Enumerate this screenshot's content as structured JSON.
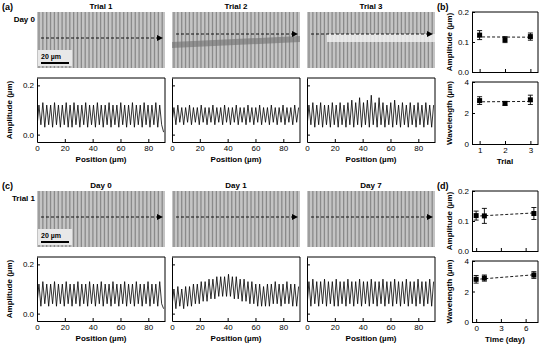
{
  "panels": [
    {
      "label": "(a)",
      "row_label": "Day 0",
      "image_titles": [
        "Trial 1",
        "Trial 2",
        "Trial 3"
      ],
      "scale_bar": "20 µm"
    },
    {
      "label": "(b)"
    },
    {
      "label": "(c)",
      "row_label": "Trial 1",
      "image_titles": [
        "Day 0",
        "Day 1",
        "Day 7"
      ],
      "scale_bar": "20 µm"
    },
    {
      "label": "(d)"
    }
  ],
  "chart_data": [
    {
      "type": "line",
      "color": "#000000",
      "xlim": [
        0,
        92
      ],
      "ylim": [
        -0.03,
        0.23
      ],
      "xticks": [
        0,
        20,
        40,
        60,
        80
      ],
      "yticks": [
        {
          "value": 0,
          "label": "0.0"
        },
        0.2
      ],
      "x_label": "Position (µm)",
      "y_label": "Amplitude (µm)",
      "x": [
        0,
        1.4,
        2.8,
        4.2,
        5.6,
        7,
        8.4,
        9.8,
        11.2,
        12.6,
        14,
        15.4,
        16.8,
        18.2,
        19.6,
        21,
        22.4,
        23.8,
        25.2,
        26.6,
        28,
        29.4,
        30.8,
        32.2,
        33.6,
        35,
        36.4,
        37.8,
        39.2,
        40.6,
        42,
        43.4,
        44.8,
        46.2,
        47.6,
        49,
        50.4,
        51.8,
        53.2,
        54.6,
        56,
        57.4,
        58.8,
        60.2,
        61.6,
        63,
        64.4,
        65.8,
        67.2,
        68.6,
        70,
        71.4,
        72.8,
        74.2,
        75.6,
        77,
        78.4,
        79.8,
        81.2,
        82.6,
        84,
        85.4,
        86.8,
        88.2,
        89.6,
        91
      ],
      "values": [
        0.03,
        0.12,
        0.04,
        0.13,
        0.03,
        0.12,
        0.04,
        0.12,
        0.03,
        0.13,
        0.04,
        0.12,
        0.03,
        0.12,
        0.04,
        0.13,
        0.03,
        0.12,
        0.03,
        0.13,
        0.04,
        0.12,
        0.03,
        0.12,
        0.04,
        0.13,
        0.03,
        0.12,
        0.04,
        0.12,
        0.03,
        0.13,
        0.04,
        0.12,
        0.03,
        0.12,
        0.04,
        0.13,
        0.03,
        0.12,
        0.04,
        0.12,
        0.03,
        0.13,
        0.04,
        0.12,
        0.03,
        0.12,
        0.04,
        0.13,
        0.03,
        0.12,
        0.04,
        0.12,
        0.03,
        0.13,
        0.04,
        0.12,
        0.03,
        0.12,
        0.04,
        0.13,
        0.03,
        0.12,
        0.04,
        0.01
      ]
    },
    {
      "type": "line",
      "color": "#000000",
      "xlim": [
        0,
        92
      ],
      "ylim": [
        -0.03,
        0.23
      ],
      "xticks": [
        0,
        20,
        40,
        60,
        80
      ],
      "yticks": [
        {
          "value": 0,
          "label": "0.0"
        },
        0.2
      ],
      "x_label": "Position (µm)",
      "tick_labels": "x",
      "x": [
        0,
        1.4,
        2.8,
        4.2,
        5.6,
        7,
        8.4,
        9.8,
        11.2,
        12.6,
        14,
        15.4,
        16.8,
        18.2,
        19.6,
        21,
        22.4,
        23.8,
        25.2,
        26.6,
        28,
        29.4,
        30.8,
        32.2,
        33.6,
        35,
        36.4,
        37.8,
        39.2,
        40.6,
        42,
        43.4,
        44.8,
        46.2,
        47.6,
        49,
        50.4,
        51.8,
        53.2,
        54.6,
        56,
        57.4,
        58.8,
        60.2,
        61.6,
        63,
        64.4,
        65.8,
        67.2,
        68.6,
        70,
        71.4,
        72.8,
        74.2,
        75.6,
        77,
        78.4,
        79.8,
        81.2,
        82.6,
        84,
        85.4,
        86.8,
        88.2,
        89.6,
        91
      ],
      "values": [
        0.05,
        0.11,
        0.04,
        0.12,
        0.05,
        0.11,
        0.04,
        0.11,
        0.05,
        0.12,
        0.04,
        0.11,
        0.05,
        0.11,
        0.04,
        0.12,
        0.05,
        0.11,
        0.04,
        0.11,
        0.05,
        0.12,
        0.04,
        0.11,
        0.05,
        0.11,
        0.04,
        0.12,
        0.05,
        0.11,
        0.04,
        0.11,
        0.05,
        0.12,
        0.04,
        0.11,
        0.05,
        0.11,
        0.04,
        0.12,
        0.05,
        0.11,
        0.04,
        0.11,
        0.05,
        0.12,
        0.04,
        0.11,
        0.05,
        0.11,
        0.04,
        0.12,
        0.05,
        0.11,
        0.04,
        0.11,
        0.05,
        0.12,
        0.04,
        0.11,
        0.05,
        0.11,
        0.04,
        0.12,
        0.05,
        0.11
      ]
    },
    {
      "type": "line",
      "color": "#000000",
      "xlim": [
        0,
        92
      ],
      "ylim": [
        -0.03,
        0.23
      ],
      "xticks": [
        0,
        20,
        40,
        60,
        80
      ],
      "yticks": [
        {
          "value": 0,
          "label": "0.0"
        },
        0.2
      ],
      "x_label": "Position (µm)",
      "tick_labels": "x",
      "x": [
        0,
        1.4,
        2.8,
        4.2,
        5.6,
        7,
        8.4,
        9.8,
        11.2,
        12.6,
        14,
        15.4,
        16.8,
        18.2,
        19.6,
        21,
        22.4,
        23.8,
        25.2,
        26.6,
        28,
        29.4,
        30.8,
        32.2,
        33.6,
        35,
        36.4,
        37.8,
        39.2,
        40.6,
        42,
        43.4,
        44.8,
        46.2,
        47.6,
        49,
        50.4,
        51.8,
        53.2,
        54.6,
        56,
        57.4,
        58.8,
        60.2,
        61.6,
        63,
        64.4,
        65.8,
        67.2,
        68.6,
        70,
        71.4,
        72.8,
        74.2,
        75.6,
        77,
        78.4,
        79.8,
        81.2,
        82.6,
        84,
        85.4,
        86.8,
        88.2,
        89.6,
        91
      ],
      "values": [
        0.03,
        0.12,
        0.04,
        0.13,
        0.03,
        0.12,
        0.04,
        0.13,
        0.03,
        0.12,
        0.04,
        0.12,
        0.03,
        0.13,
        0.04,
        0.12,
        0.03,
        0.13,
        0.04,
        0.12,
        0.03,
        0.13,
        0.04,
        0.14,
        0.03,
        0.13,
        0.04,
        0.15,
        0.03,
        0.13,
        0.04,
        0.14,
        0.03,
        0.16,
        0.04,
        0.13,
        0.03,
        0.15,
        0.04,
        0.13,
        0.03,
        0.12,
        0.04,
        0.13,
        0.03,
        0.14,
        0.04,
        0.12,
        0.03,
        0.13,
        0.04,
        0.12,
        0.03,
        0.13,
        0.04,
        0.12,
        0.03,
        0.13,
        0.04,
        0.12,
        0.03,
        0.13,
        0.04,
        0.12,
        0.03,
        0.12
      ]
    },
    {
      "type": "line",
      "color": "#000000",
      "xlim": [
        0,
        92
      ],
      "ylim": [
        -0.03,
        0.23
      ],
      "xticks": [
        0,
        20,
        40,
        60,
        80
      ],
      "yticks": [
        {
          "value": 0,
          "label": "0.0"
        },
        0.2
      ],
      "x_label": "Position (µm)",
      "y_label": "Amplitude (µm)",
      "x": [
        0,
        1.4,
        2.8,
        4.2,
        5.6,
        7,
        8.4,
        9.8,
        11.2,
        12.6,
        14,
        15.4,
        16.8,
        18.2,
        19.6,
        21,
        22.4,
        23.8,
        25.2,
        26.6,
        28,
        29.4,
        30.8,
        32.2,
        33.6,
        35,
        36.4,
        37.8,
        39.2,
        40.6,
        42,
        43.4,
        44.8,
        46.2,
        47.6,
        49,
        50.4,
        51.8,
        53.2,
        54.6,
        56,
        57.4,
        58.8,
        60.2,
        61.6,
        63,
        64.4,
        65.8,
        67.2,
        68.6,
        70,
        71.4,
        72.8,
        74.2,
        75.6,
        77,
        78.4,
        79.8,
        81.2,
        82.6,
        84,
        85.4,
        86.8,
        88.2,
        89.6,
        91
      ],
      "values": [
        0.04,
        0.12,
        0.03,
        0.13,
        0.04,
        0.12,
        0.03,
        0.12,
        0.04,
        0.13,
        0.03,
        0.12,
        0.04,
        0.12,
        0.03,
        0.13,
        0.04,
        0.12,
        0.03,
        0.12,
        0.04,
        0.13,
        0.03,
        0.12,
        0.04,
        0.12,
        0.03,
        0.13,
        0.04,
        0.12,
        0.03,
        0.12,
        0.04,
        0.13,
        0.03,
        0.12,
        0.04,
        0.12,
        0.03,
        0.13,
        0.04,
        0.12,
        0.03,
        0.12,
        0.04,
        0.13,
        0.03,
        0.12,
        0.04,
        0.12,
        0.03,
        0.13,
        0.04,
        0.12,
        0.03,
        0.12,
        0.04,
        0.13,
        0.03,
        0.12,
        0.04,
        0.12,
        0.03,
        0.13,
        0.04,
        0.02
      ]
    },
    {
      "type": "line",
      "color": "#000000",
      "xlim": [
        0,
        92
      ],
      "ylim": [
        -0.03,
        0.23
      ],
      "xticks": [
        0,
        20,
        40,
        60,
        80
      ],
      "yticks": [
        {
          "value": 0,
          "label": "0.0"
        },
        0.2
      ],
      "x_label": "Position (µm)",
      "tick_labels": "x",
      "x": [
        0,
        1.4,
        2.8,
        4.2,
        5.6,
        7,
        8.4,
        9.8,
        11.2,
        12.6,
        14,
        15.4,
        16.8,
        18.2,
        19.6,
        21,
        22.4,
        23.8,
        25.2,
        26.6,
        28,
        29.4,
        30.8,
        32.2,
        33.6,
        35,
        36.4,
        37.8,
        39.2,
        40.6,
        42,
        43.4,
        44.8,
        46.2,
        47.6,
        49,
        50.4,
        51.8,
        53.2,
        54.6,
        56,
        57.4,
        58.8,
        60.2,
        61.6,
        63,
        64.4,
        65.8,
        67.2,
        68.6,
        70,
        71.4,
        72.8,
        74.2,
        75.6,
        77,
        78.4,
        79.8,
        81.2,
        82.6,
        84,
        85.4,
        86.8,
        88.2,
        89.6,
        91
      ],
      "values": [
        0.03,
        0.1,
        0.02,
        0.11,
        0.03,
        0.1,
        0.02,
        0.11,
        0.03,
        0.11,
        0.03,
        0.12,
        0.04,
        0.12,
        0.04,
        0.13,
        0.05,
        0.13,
        0.05,
        0.14,
        0.06,
        0.14,
        0.06,
        0.15,
        0.07,
        0.15,
        0.07,
        0.15,
        0.07,
        0.16,
        0.07,
        0.15,
        0.06,
        0.15,
        0.06,
        0.14,
        0.05,
        0.14,
        0.05,
        0.13,
        0.04,
        0.13,
        0.04,
        0.12,
        0.03,
        0.12,
        0.03,
        0.11,
        0.03,
        0.12,
        0.03,
        0.12,
        0.04,
        0.13,
        0.04,
        0.12,
        0.03,
        0.12,
        0.04,
        0.13,
        0.04,
        0.12,
        0.03,
        0.12,
        0.03,
        0.11
      ]
    },
    {
      "type": "line",
      "color": "#000000",
      "xlim": [
        0,
        92
      ],
      "ylim": [
        -0.03,
        0.23
      ],
      "xticks": [
        0,
        20,
        40,
        60,
        80
      ],
      "yticks": [
        {
          "value": 0,
          "label": "0.0"
        },
        0.2
      ],
      "x_label": "Position (µm)",
      "tick_labels": "x",
      "x": [
        0,
        1.4,
        2.8,
        4.2,
        5.6,
        7,
        8.4,
        9.8,
        11.2,
        12.6,
        14,
        15.4,
        16.8,
        18.2,
        19.6,
        21,
        22.4,
        23.8,
        25.2,
        26.6,
        28,
        29.4,
        30.8,
        32.2,
        33.6,
        35,
        36.4,
        37.8,
        39.2,
        40.6,
        42,
        43.4,
        44.8,
        46.2,
        47.6,
        49,
        50.4,
        51.8,
        53.2,
        54.6,
        56,
        57.4,
        58.8,
        60.2,
        61.6,
        63,
        64.4,
        65.8,
        67.2,
        68.6,
        70,
        71.4,
        72.8,
        74.2,
        75.6,
        77,
        78.4,
        79.8,
        81.2,
        82.6,
        84,
        85.4,
        86.8,
        88.2,
        89.6,
        91
      ],
      "values": [
        0.03,
        0.13,
        0.03,
        0.14,
        0.04,
        0.13,
        0.03,
        0.13,
        0.04,
        0.14,
        0.03,
        0.13,
        0.04,
        0.13,
        0.03,
        0.14,
        0.03,
        0.13,
        0.04,
        0.13,
        0.03,
        0.14,
        0.04,
        0.13,
        0.03,
        0.13,
        0.04,
        0.14,
        0.03,
        0.13,
        0.04,
        0.13,
        0.03,
        0.14,
        0.04,
        0.13,
        0.03,
        0.13,
        0.04,
        0.14,
        0.03,
        0.13,
        0.04,
        0.13,
        0.03,
        0.14,
        0.04,
        0.13,
        0.03,
        0.13,
        0.04,
        0.14,
        0.03,
        0.13,
        0.04,
        0.13,
        0.03,
        0.14,
        0.04,
        0.13,
        0.03,
        0.13,
        0.04,
        0.14,
        0.03,
        0.13
      ]
    },
    {
      "type": "scatter",
      "color": "#000000",
      "marker": "square",
      "x": [
        1,
        2,
        3
      ],
      "values": [
        0.123,
        0.108,
        0.118
      ],
      "errors": [
        0.015,
        0.01,
        0.012
      ],
      "fit": {
        "x": [
          0.9,
          3.1
        ],
        "values": [
          0.117,
          0.116
        ],
        "line_style": "dashed"
      },
      "xlim": [
        0.7,
        3.3
      ],
      "ylim": [
        0,
        0.2
      ],
      "xticks": [
        1,
        2,
        3
      ],
      "yticks": [
        {
          "value": 0,
          "label": "0.0"
        },
        0.1,
        0.2
      ],
      "y_label": "Amplitude (µm)",
      "tick_labels": "y"
    },
    {
      "type": "scatter",
      "color": "#000000",
      "marker": "square",
      "x": [
        1,
        2,
        3
      ],
      "values": [
        2.8,
        2.62,
        2.85
      ],
      "errors": [
        0.25,
        0.12,
        0.3
      ],
      "fit": {
        "x": [
          0.9,
          3.1
        ],
        "values": [
          2.72,
          2.75
        ],
        "line_style": "dashed"
      },
      "xlim": [
        0.7,
        3.3
      ],
      "ylim": [
        0,
        4
      ],
      "xticks": [
        1,
        2,
        3
      ],
      "yticks": [
        0,
        2,
        4
      ],
      "x_label": "Trial",
      "y_label": "Wavelength (µm)"
    },
    {
      "type": "scatter",
      "color": "#000000",
      "marker": "square",
      "x": [
        0,
        1,
        7
      ],
      "values": [
        0.118,
        0.117,
        0.125
      ],
      "errors": [
        0.015,
        0.025,
        0.02
      ],
      "fit": {
        "x": [
          -0.1,
          7.1
        ],
        "values": [
          0.116,
          0.127
        ],
        "line_style": "dashed"
      },
      "xlim": [
        -0.5,
        7.5
      ],
      "ylim": [
        0,
        0.2
      ],
      "xticks": [
        0,
        3,
        6
      ],
      "yticks": [
        {
          "value": 0,
          "label": "0.0"
        },
        0.1,
        0.2
      ],
      "y_label": "Amplitude (µm)",
      "tick_labels": "y"
    },
    {
      "type": "scatter",
      "color": "#000000",
      "marker": "square",
      "x": [
        0,
        1,
        7
      ],
      "values": [
        2.8,
        2.88,
        3.08
      ],
      "errors": [
        0.25,
        0.2,
        0.22
      ],
      "fit": {
        "x": [
          -0.1,
          7.1
        ],
        "values": [
          2.79,
          3.1
        ],
        "line_style": "dashed"
      },
      "xlim": [
        -0.5,
        7.5
      ],
      "ylim": [
        0,
        4
      ],
      "xticks": [
        0,
        3,
        6
      ],
      "yticks": [
        0,
        2,
        4
      ],
      "x_label": "Time (day)",
      "y_label": "Wavelength (µm)"
    }
  ]
}
